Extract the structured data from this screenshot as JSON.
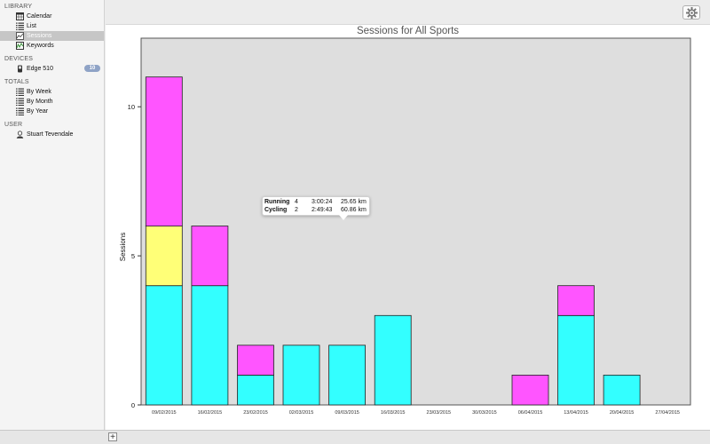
{
  "sidebar": {
    "sections": [
      {
        "title": "LIBRARY",
        "items": [
          {
            "label": "Calendar",
            "icon": "calendar-icon"
          },
          {
            "label": "List",
            "icon": "list-icon"
          },
          {
            "label": "Sessions",
            "icon": "chart-icon",
            "selected": true
          },
          {
            "label": "Keywords",
            "icon": "keywords-icon"
          }
        ]
      },
      {
        "title": "DEVICES",
        "items": [
          {
            "label": "Edge 510",
            "icon": "device-icon",
            "badge": "10"
          }
        ]
      },
      {
        "title": "TOTALS",
        "items": [
          {
            "label": "By Week",
            "icon": "list-icon"
          },
          {
            "label": "By Month",
            "icon": "list-icon"
          },
          {
            "label": "By Year",
            "icon": "list-icon"
          }
        ]
      },
      {
        "title": "USER",
        "items": [
          {
            "label": "Stuart Tevendale",
            "icon": "user-icon"
          }
        ]
      }
    ]
  },
  "toolbar": {
    "settings_icon": "gear-icon"
  },
  "bottom_bar": {
    "add_label": "+"
  },
  "colors": {
    "running": "#33ffff",
    "cycling": "#ff55ff",
    "swimming": "#ffff77",
    "plot_bg": "#dedede",
    "bar_stroke": "#222222",
    "badge": "#8fa3c6"
  },
  "chart_data": {
    "type": "bar",
    "title": "Sessions for All Sports",
    "ylabel": "Sessions",
    "xlabel": "",
    "ylim": [
      0,
      12.3
    ],
    "yticks": [
      0,
      5,
      10
    ],
    "stacked": true,
    "categories": [
      "09/02/2015",
      "16/02/2015",
      "23/02/2015",
      "02/03/2015",
      "09/03/2015",
      "16/03/2015",
      "23/03/2015",
      "30/03/2015",
      "06/04/2015",
      "13/04/2015",
      "20/04/2015",
      "27/04/2015"
    ],
    "series": [
      {
        "color": "#33ffff",
        "values": [
          4,
          4,
          1,
          2,
          2,
          3,
          0,
          0,
          0,
          3,
          1,
          0
        ]
      },
      {
        "color": "#ffff77",
        "values": [
          2,
          0,
          0,
          0,
          0,
          0,
          0,
          0,
          0,
          0,
          0,
          0
        ]
      },
      {
        "color": "#ff55ff",
        "values": [
          5,
          2,
          1,
          0,
          0,
          0,
          0,
          0,
          1,
          1,
          0,
          0
        ]
      }
    ],
    "grid": false
  },
  "tooltip": {
    "rows": [
      {
        "sport": "Running",
        "count": "4",
        "time": "3:00:24",
        "distance": "25.65 km"
      },
      {
        "sport": "Cycling",
        "count": "2",
        "time": "2:49:43",
        "distance": "60.86 km"
      }
    ]
  }
}
